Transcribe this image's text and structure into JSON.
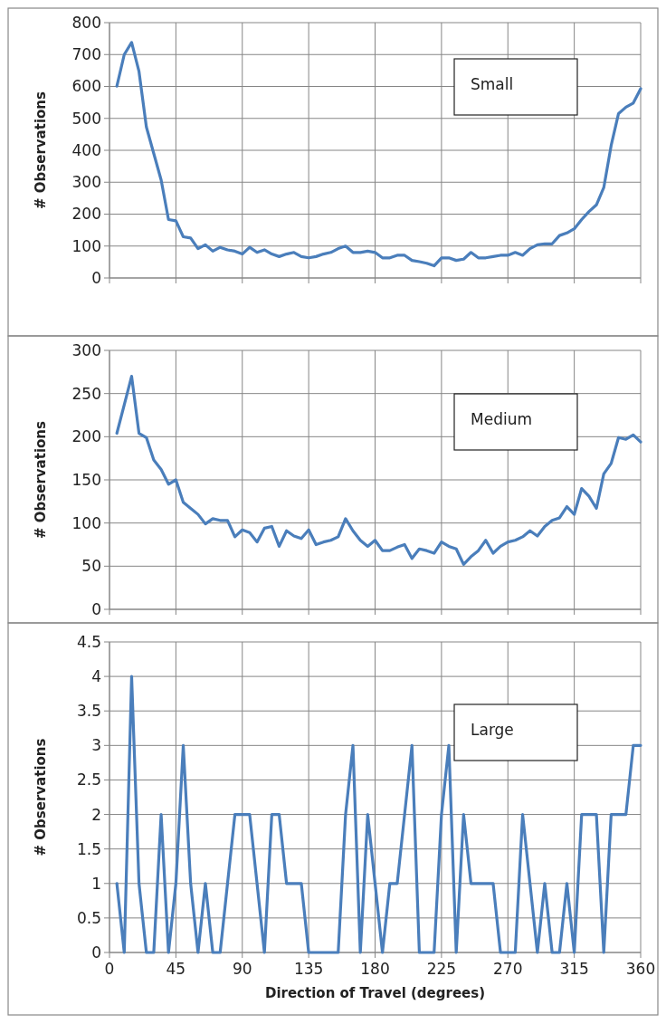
{
  "chart_data": [
    {
      "type": "line",
      "ylabel": "# Observations",
      "annotations": [
        "Small"
      ],
      "color": "#4a7ebb",
      "grid": true,
      "tick_labels": "y",
      "xlim": [
        0,
        360
      ],
      "xticks": [
        0,
        45,
        90,
        135,
        180,
        225,
        270,
        315,
        360
      ],
      "ylim": [
        0,
        800
      ],
      "yticks": [
        0,
        100,
        200,
        300,
        400,
        500,
        600,
        700,
        800
      ],
      "x": [
        5,
        10,
        15,
        20,
        25,
        30,
        35,
        40,
        45,
        50,
        55,
        60,
        65,
        70,
        75,
        80,
        85,
        90,
        95,
        100,
        105,
        110,
        115,
        120,
        125,
        130,
        135,
        140,
        145,
        150,
        155,
        160,
        165,
        170,
        175,
        180,
        185,
        190,
        195,
        200,
        205,
        210,
        215,
        220,
        225,
        230,
        235,
        240,
        245,
        250,
        255,
        260,
        265,
        270,
        275,
        280,
        285,
        290,
        295,
        300,
        305,
        310,
        315,
        320,
        325,
        330,
        335,
        340,
        345,
        350,
        355,
        360
      ],
      "values": [
        601,
        700,
        738,
        647,
        473,
        390,
        307,
        183,
        179,
        129,
        125,
        92,
        104,
        84,
        96,
        88,
        84,
        75,
        96,
        80,
        88,
        75,
        67,
        75,
        80,
        67,
        63,
        67,
        75,
        80,
        92,
        100,
        80,
        80,
        84,
        80,
        63,
        63,
        71,
        71,
        55,
        51,
        46,
        38,
        63,
        63,
        55,
        59,
        80,
        63,
        63,
        67,
        71,
        71,
        80,
        71,
        92,
        104,
        107,
        107,
        133,
        141,
        154,
        183,
        208,
        229,
        283,
        415,
        515,
        535,
        548,
        593
      ]
    },
    {
      "type": "line",
      "ylabel": "# Observations",
      "annotations": [
        "Medium"
      ],
      "color": "#4a7ebb",
      "grid": true,
      "tick_labels": "y",
      "xlim": [
        0,
        360
      ],
      "xticks": [
        0,
        45,
        90,
        135,
        180,
        225,
        270,
        315,
        360
      ],
      "ylim": [
        0,
        300
      ],
      "yticks": [
        0,
        50,
        100,
        150,
        200,
        250,
        300
      ],
      "x": [
        5,
        10,
        15,
        20,
        25,
        30,
        35,
        40,
        45,
        50,
        55,
        60,
        65,
        70,
        75,
        80,
        85,
        90,
        95,
        100,
        105,
        110,
        115,
        120,
        125,
        130,
        135,
        140,
        145,
        150,
        155,
        160,
        165,
        170,
        175,
        180,
        185,
        190,
        195,
        200,
        205,
        210,
        215,
        220,
        225,
        230,
        235,
        240,
        245,
        250,
        255,
        260,
        265,
        270,
        275,
        280,
        285,
        290,
        295,
        300,
        305,
        310,
        315,
        320,
        325,
        330,
        335,
        340,
        345,
        350,
        355,
        360
      ],
      "values": [
        204,
        237,
        270,
        204,
        199,
        173,
        162,
        145,
        150,
        124,
        117,
        110,
        99,
        105,
        103,
        103,
        84,
        92,
        89,
        78,
        94,
        96,
        73,
        91,
        85,
        82,
        92,
        75,
        78,
        80,
        84,
        105,
        91,
        80,
        73,
        80,
        68,
        68,
        72,
        75,
        59,
        70,
        68,
        65,
        78,
        73,
        70,
        52,
        61,
        68,
        80,
        65,
        73,
        78,
        80,
        84,
        91,
        85,
        96,
        103,
        106,
        119,
        110,
        140,
        131,
        117,
        157,
        169,
        199,
        197,
        202,
        194
      ]
    },
    {
      "type": "line",
      "ylabel": "# Observations",
      "xlabel": "Direction of Travel (degrees)",
      "annotations": [
        "Large"
      ],
      "color": "#4a7ebb",
      "grid": true,
      "xlim": [
        0,
        360
      ],
      "xticks": [
        0,
        45,
        90,
        135,
        180,
        225,
        270,
        315,
        360
      ],
      "ylim": [
        0,
        4.5
      ],
      "yticks": [
        0,
        0.5,
        1,
        1.5,
        2,
        2.5,
        3,
        3.5,
        4,
        4.5
      ],
      "x": [
        5,
        10,
        15,
        20,
        25,
        30,
        35,
        40,
        45,
        50,
        55,
        60,
        65,
        70,
        75,
        80,
        85,
        90,
        95,
        100,
        105,
        110,
        115,
        120,
        125,
        130,
        135,
        140,
        145,
        150,
        155,
        160,
        165,
        170,
        175,
        180,
        185,
        190,
        195,
        200,
        205,
        210,
        215,
        220,
        225,
        230,
        235,
        240,
        245,
        250,
        255,
        260,
        265,
        270,
        275,
        280,
        285,
        290,
        295,
        300,
        305,
        310,
        315,
        320,
        325,
        330,
        335,
        340,
        345,
        350,
        355,
        360
      ],
      "values": [
        1,
        0,
        4,
        1,
        0,
        0,
        2,
        0,
        1,
        3,
        1,
        0,
        1,
        0,
        0,
        1,
        2,
        2,
        2,
        1,
        0,
        2,
        2,
        1,
        1,
        1,
        0,
        0,
        0,
        0,
        0,
        2,
        3,
        0,
        2,
        1,
        0,
        1,
        1,
        2,
        3,
        0,
        0,
        0,
        2,
        3,
        0,
        2,
        1,
        1,
        1,
        1,
        0,
        0,
        0,
        2,
        1,
        0,
        1,
        0,
        0,
        1,
        0,
        2,
        2,
        2,
        0,
        2,
        2,
        2,
        3,
        3
      ]
    }
  ]
}
